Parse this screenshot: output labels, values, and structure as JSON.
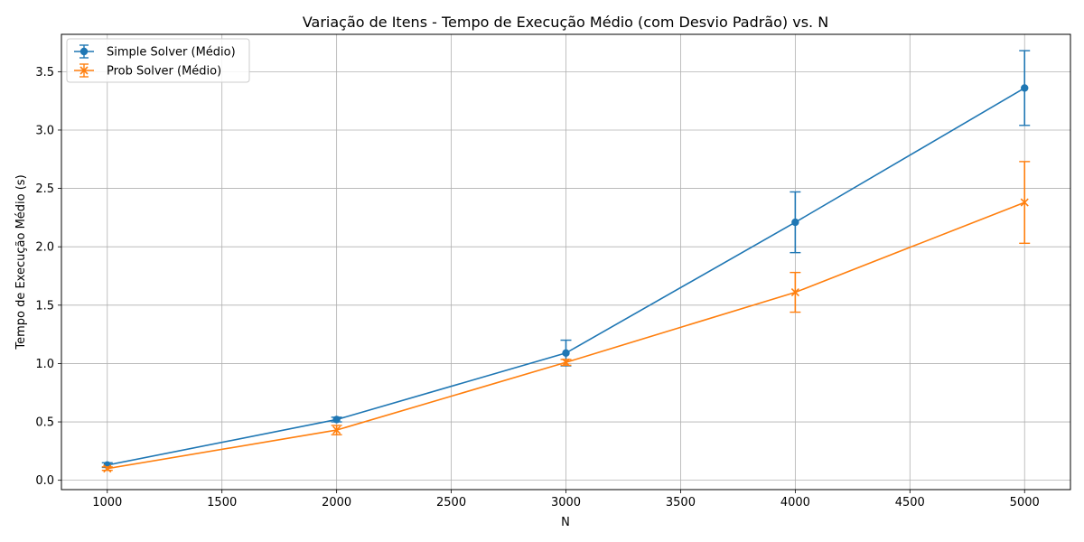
{
  "chart_data": {
    "type": "line",
    "title": "Variação de Itens - Tempo de Execução Médio (com Desvio Padrão) vs. N",
    "xlabel": "N",
    "ylabel": "Tempo de Execução Médio (s)",
    "x": [
      1000,
      2000,
      3000,
      4000,
      5000
    ],
    "xlim": [
      800,
      5200
    ],
    "ylim": [
      -0.08,
      3.82
    ],
    "xticks": [
      1000,
      1500,
      2000,
      2500,
      3000,
      3500,
      4000,
      4500,
      5000
    ],
    "yticks": [
      0.0,
      0.5,
      1.0,
      1.5,
      2.0,
      2.5,
      3.0,
      3.5
    ],
    "xtick_labels": [
      "1000",
      "1500",
      "2000",
      "2500",
      "3000",
      "3500",
      "4000",
      "4500",
      "5000"
    ],
    "ytick_labels": [
      "0.0",
      "0.5",
      "1.0",
      "1.5",
      "2.0",
      "2.5",
      "3.0",
      "3.5"
    ],
    "grid": true,
    "legend_position": "top-left",
    "series": [
      {
        "name": "Simple Solver (Médio)",
        "color": "#1f77b4",
        "marker": "circle",
        "values": [
          0.13,
          0.52,
          1.09,
          2.21,
          3.36
        ],
        "errors": [
          0.02,
          0.02,
          0.11,
          0.26,
          0.32
        ]
      },
      {
        "name": "Prob Solver (Médio)",
        "color": "#ff7f0e",
        "marker": "x",
        "values": [
          0.1,
          0.43,
          1.01,
          1.61,
          2.38
        ],
        "errors": [
          0.015,
          0.04,
          0.025,
          0.17,
          0.35
        ]
      }
    ]
  }
}
